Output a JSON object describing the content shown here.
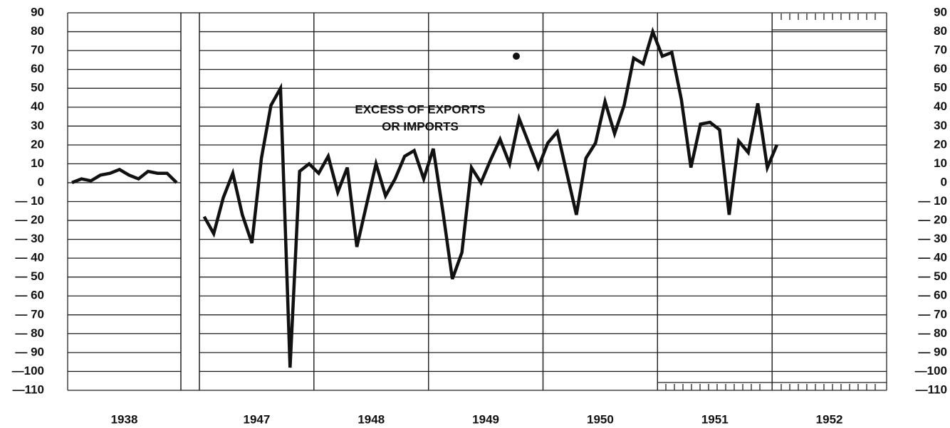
{
  "chart_data": {
    "type": "line",
    "annotation": [
      "EXCESS OF EXPORTS",
      "OR IMPORTS"
    ],
    "x_labels": [
      "1938",
      "1947",
      "1948",
      "1949",
      "1950",
      "1951",
      "1952"
    ],
    "series": [
      {
        "color": "#111111",
        "values": [
          0,
          2,
          1,
          4,
          5,
          7,
          4,
          2,
          6,
          5,
          5,
          0
        ]
      },
      {
        "color": "#111111",
        "values": [
          -18,
          -27,
          -8,
          5,
          -17,
          -32,
          13,
          41,
          50,
          -98,
          6,
          10,
          5,
          14,
          -5,
          8,
          -34,
          -12,
          10,
          -7,
          2,
          14,
          17,
          2,
          18,
          -15,
          -51,
          -37,
          8,
          0,
          12,
          23,
          10,
          34,
          21,
          8,
          21,
          27,
          5,
          -17,
          13,
          21,
          43,
          26,
          41,
          66,
          63,
          80,
          67,
          69,
          44,
          8,
          31,
          32,
          28,
          -17,
          22,
          16,
          42,
          8,
          20
        ]
      }
    ],
    "ylim": [
      -110,
      90
    ],
    "yticks": [
      90,
      80,
      70,
      60,
      50,
      40,
      30,
      20,
      10,
      0,
      {
        "value": -10,
        "label": "— 10"
      },
      {
        "value": -20,
        "label": "— 20"
      },
      {
        "value": -30,
        "label": "— 30"
      },
      {
        "value": -40,
        "label": "— 40"
      },
      {
        "value": -50,
        "label": "— 50"
      },
      {
        "value": -60,
        "label": "— 60"
      },
      {
        "value": -70,
        "label": "— 70"
      },
      {
        "value": -80,
        "label": "— 80"
      },
      {
        "value": -90,
        "label": "— 90"
      },
      {
        "value": -100,
        "label": "—100"
      },
      {
        "value": -110,
        "label": "—110"
      }
    ],
    "grid": true
  }
}
